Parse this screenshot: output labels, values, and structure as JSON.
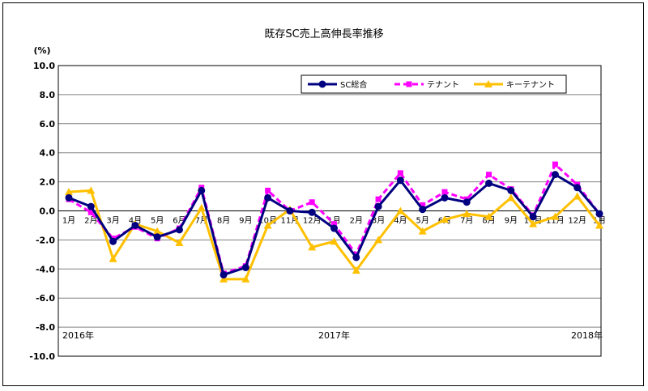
{
  "chart_data": {
    "type": "line",
    "title": "既存SC売上高伸長率推移",
    "ylabel": "(%)",
    "ylim": [
      -10,
      10
    ],
    "ytick_step": 2,
    "yticks": [
      "10.0",
      "8.0",
      "6.0",
      "4.0",
      "2.0",
      "0.0",
      "-2.0",
      "-4.0",
      "-6.0",
      "-8.0",
      "-10.0"
    ],
    "categories": [
      "1月",
      "2月",
      "3月",
      "4月",
      "5月",
      "6月",
      "7月",
      "8月",
      "9月",
      "10月",
      "11月",
      "12月",
      "1月",
      "2月",
      "3月",
      "4月",
      "5月",
      "6月",
      "7月",
      "8月",
      "9月",
      "10月",
      "11月",
      "12月",
      "1月"
    ],
    "years": [
      {
        "label": "2016年",
        "index": 0
      },
      {
        "label": "2017年",
        "index": 12
      },
      {
        "label": "2018年",
        "index": 24
      }
    ],
    "grid": true,
    "legend_position": "top-right",
    "series": [
      {
        "name": "SC総合",
        "color": "#000080",
        "style": "solid",
        "marker": "circle",
        "values": [
          0.9,
          0.3,
          -2.1,
          -1.0,
          -1.8,
          -1.3,
          1.4,
          -4.4,
          -3.9,
          0.9,
          0.0,
          -0.1,
          -1.2,
          -3.2,
          0.3,
          2.1,
          0.1,
          0.9,
          0.6,
          1.9,
          1.4,
          -0.4,
          2.5,
          1.6,
          -0.2
        ]
      },
      {
        "name": "テナント",
        "color": "#ff00ff",
        "style": "dashed",
        "marker": "square",
        "values": [
          0.8,
          -0.1,
          -1.9,
          -1.1,
          -1.9,
          -1.2,
          1.6,
          -4.3,
          -3.8,
          1.4,
          0.0,
          0.6,
          -0.9,
          -3.0,
          0.8,
          2.6,
          0.4,
          1.3,
          0.8,
          2.5,
          1.5,
          -0.3,
          3.2,
          1.8,
          -0.2
        ]
      },
      {
        "name": "キーテナント",
        "color": "#ffc000",
        "style": "solid",
        "marker": "triangle",
        "values": [
          1.3,
          1.4,
          -3.3,
          -0.9,
          -1.4,
          -2.2,
          0.2,
          -4.7,
          -4.7,
          -1.0,
          0.1,
          -2.5,
          -2.1,
          -4.1,
          -2.0,
          0.0,
          -1.4,
          -0.6,
          -0.2,
          -0.4,
          0.9,
          -0.9,
          -0.4,
          1.0,
          -1.0
        ]
      }
    ]
  }
}
